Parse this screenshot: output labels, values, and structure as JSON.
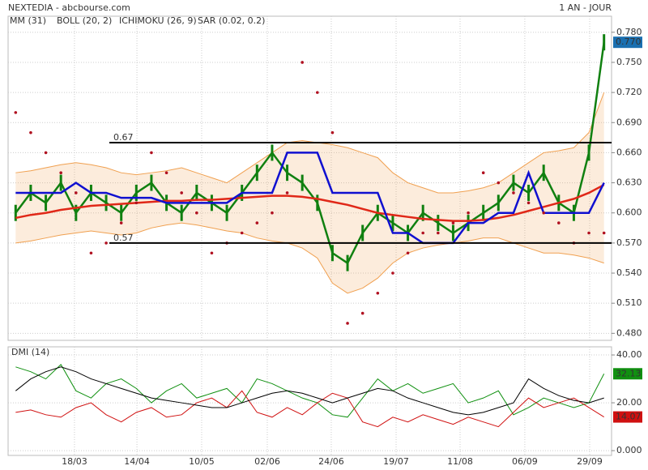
{
  "header": {
    "source": "NEXTEDIA - abcbourse.com",
    "period": "1 AN - JOUR"
  },
  "chart_data": [
    {
      "type": "stock",
      "x": [
        0,
        1,
        2,
        3,
        4,
        5,
        6,
        7,
        8,
        9,
        10,
        11,
        12,
        13,
        14,
        15,
        16,
        17,
        18,
        19,
        20,
        21,
        22,
        23,
        24,
        25,
        26,
        27,
        28,
        29,
        30,
        31,
        32,
        33,
        34,
        35,
        36,
        37,
        38,
        39
      ],
      "xlim": [
        -0.5,
        39.5
      ],
      "xticks": [
        {
          "value": 3.9,
          "label": "18/03"
        },
        {
          "value": 8.04,
          "label": "14/04"
        },
        {
          "value": 12.33,
          "label": "10/05"
        },
        {
          "value": 16.68,
          "label": "02/06"
        },
        {
          "value": 20.92,
          "label": "24/06"
        },
        {
          "value": 25.22,
          "label": "19/07"
        },
        {
          "value": 29.46,
          "label": "11/08"
        },
        {
          "value": 33.75,
          "label": "06/09"
        },
        {
          "value": 38.05,
          "label": "29/09"
        }
      ],
      "ylim": [
        0.473,
        0.796
      ],
      "yticks": [
        {
          "value": 0.48,
          "label": "0.480"
        },
        {
          "value": 0.51,
          "label": "0.510"
        },
        {
          "value": 0.54,
          "label": "0.540"
        },
        {
          "value": 0.57,
          "label": "0.570"
        },
        {
          "value": 0.6,
          "label": "0.600"
        },
        {
          "value": 0.63,
          "label": "0.630"
        },
        {
          "value": 0.66,
          "label": "0.660"
        },
        {
          "value": 0.69,
          "label": "0.690"
        },
        {
          "value": 0.72,
          "label": "0.720"
        },
        {
          "value": 0.75,
          "label": "0.750"
        },
        {
          "value": 0.78,
          "label": "0.780"
        }
      ],
      "grid": true,
      "hlines": [
        0.67,
        0.57
      ],
      "price": {
        "color": "#108010",
        "last_value_label": "0.770",
        "values": [
          0.6,
          0.62,
          0.61,
          0.63,
          0.6,
          0.62,
          0.61,
          0.6,
          0.62,
          0.63,
          0.61,
          0.6,
          0.62,
          0.61,
          0.6,
          0.62,
          0.64,
          0.66,
          0.64,
          0.63,
          0.61,
          0.56,
          0.55,
          0.58,
          0.6,
          0.59,
          0.58,
          0.6,
          0.59,
          0.58,
          0.59,
          0.6,
          0.61,
          0.63,
          0.62,
          0.64,
          0.61,
          0.6,
          0.66,
          0.77
        ]
      },
      "series": [
        {
          "name": "MM (31)",
          "color": "#e02818",
          "style": "line",
          "values": [
            0.595,
            0.598,
            0.6,
            0.603,
            0.605,
            0.607,
            0.608,
            0.609,
            0.61,
            0.611,
            0.612,
            0.612,
            0.613,
            0.613,
            0.614,
            0.615,
            0.616,
            0.617,
            0.617,
            0.616,
            0.614,
            0.611,
            0.608,
            0.604,
            0.6,
            0.598,
            0.596,
            0.594,
            0.593,
            0.592,
            0.592,
            0.593,
            0.595,
            0.598,
            0.602,
            0.606,
            0.61,
            0.614,
            0.62,
            0.628
          ]
        },
        {
          "name": "BOLL (20, 2)",
          "color": "#f0a050",
          "style": "band",
          "upper": [
            0.64,
            0.642,
            0.645,
            0.648,
            0.65,
            0.648,
            0.645,
            0.64,
            0.638,
            0.64,
            0.642,
            0.645,
            0.64,
            0.635,
            0.63,
            0.64,
            0.65,
            0.66,
            0.67,
            0.672,
            0.67,
            0.668,
            0.665,
            0.66,
            0.655,
            0.64,
            0.63,
            0.625,
            0.62,
            0.62,
            0.622,
            0.625,
            0.63,
            0.64,
            0.65,
            0.66,
            0.662,
            0.665,
            0.68,
            0.72
          ],
          "lower": [
            0.57,
            0.572,
            0.575,
            0.578,
            0.58,
            0.582,
            0.58,
            0.578,
            0.58,
            0.585,
            0.588,
            0.59,
            0.588,
            0.585,
            0.582,
            0.58,
            0.575,
            0.572,
            0.57,
            0.565,
            0.555,
            0.53,
            0.52,
            0.525,
            0.535,
            0.55,
            0.56,
            0.565,
            0.568,
            0.57,
            0.572,
            0.575,
            0.575,
            0.57,
            0.565,
            0.56,
            0.56,
            0.558,
            0.555,
            0.55
          ]
        },
        {
          "name": "ICHIMOKU (26, 9)",
          "color": "#1010d0",
          "style": "line",
          "values": [
            0.62,
            0.62,
            0.62,
            0.62,
            0.63,
            0.62,
            0.62,
            0.615,
            0.615,
            0.615,
            0.61,
            0.61,
            0.61,
            0.61,
            0.61,
            0.62,
            0.62,
            0.62,
            0.66,
            0.66,
            0.66,
            0.62,
            0.62,
            0.62,
            0.62,
            0.58,
            0.58,
            0.57,
            0.57,
            0.57,
            0.59,
            0.59,
            0.6,
            0.6,
            0.64,
            0.6,
            0.6,
            0.6,
            0.6,
            0.63
          ]
        },
        {
          "name": "SAR (0.02, 0.2)",
          "color": "#b01020",
          "style": "dots",
          "values": [
            0.7,
            0.68,
            0.66,
            0.64,
            0.62,
            0.56,
            0.57,
            0.59,
            0.61,
            0.66,
            0.64,
            0.62,
            0.6,
            0.56,
            0.57,
            0.58,
            0.59,
            0.6,
            0.62,
            0.75,
            0.72,
            0.68,
            0.49,
            0.5,
            0.52,
            0.54,
            0.56,
            0.58,
            0.58,
            0.59,
            0.6,
            0.64,
            0.63,
            0.62,
            0.61,
            0.6,
            0.59,
            0.57,
            0.58,
            0.58
          ]
        }
      ]
    },
    {
      "type": "line",
      "title": "DMI (14)",
      "ylim": [
        -2,
        43.4
      ],
      "yticks": [
        {
          "value": 0,
          "label": "0.000"
        },
        {
          "value": 20,
          "label": "20.00"
        },
        {
          "value": 40,
          "label": "40.00"
        }
      ],
      "grid": true,
      "series": [
        {
          "color": "#109010",
          "end_label": true,
          "values": [
            35,
            33,
            30,
            36,
            25,
            22,
            28,
            30,
            26,
            20,
            25,
            28,
            22,
            24,
            26,
            20,
            30,
            28,
            25,
            22,
            20,
            15,
            14,
            22,
            30,
            25,
            28,
            24,
            26,
            28,
            20,
            22,
            25,
            15,
            18,
            22,
            20,
            18,
            20,
            32.13
          ]
        },
        {
          "color": "#d01010",
          "end_label": true,
          "values": [
            16,
            17,
            15,
            14,
            18,
            20,
            15,
            12,
            16,
            18,
            14,
            15,
            20,
            22,
            18,
            25,
            16,
            14,
            18,
            15,
            20,
            24,
            22,
            12,
            10,
            14,
            12,
            15,
            13,
            11,
            14,
            12,
            10,
            16,
            22,
            18,
            20,
            22,
            18,
            14.07
          ]
        },
        {
          "color": "#000000",
          "end_label": false,
          "values": [
            25,
            30,
            33,
            35,
            33,
            30,
            28,
            26,
            24,
            22,
            21,
            20,
            19,
            18,
            18,
            20,
            22,
            24,
            25,
            24,
            22,
            20,
            22,
            24,
            26,
            25,
            22,
            20,
            18,
            16,
            15,
            16,
            18,
            20,
            30,
            26,
            23,
            21,
            20,
            22
          ]
        }
      ]
    }
  ]
}
